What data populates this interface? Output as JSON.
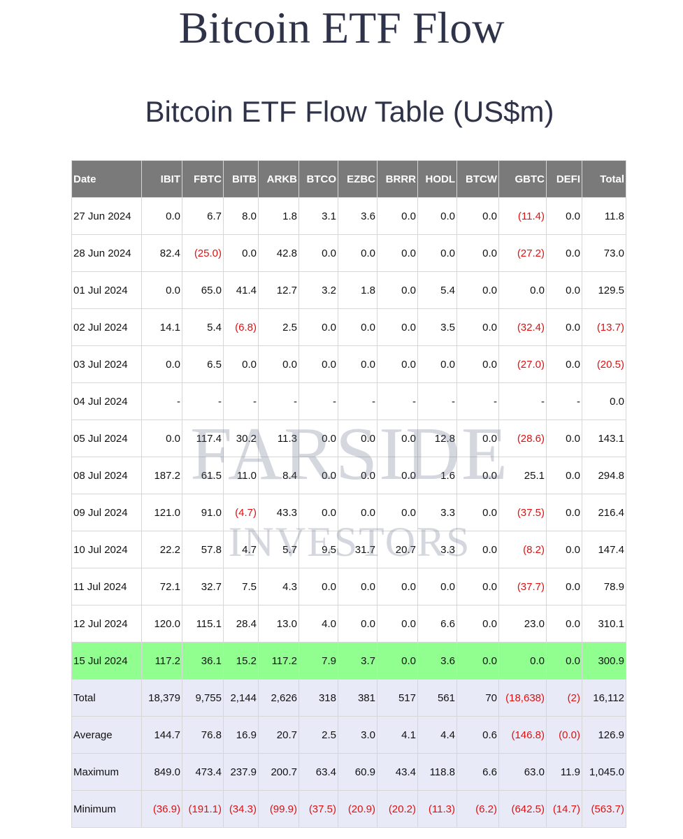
{
  "page": {
    "site_title": "Bitcoin ETF Flow",
    "table_title": "Bitcoin ETF Flow Table (US$m)"
  },
  "watermark": {
    "line1": "FARSIDE",
    "line2": "INVESTORS"
  },
  "table": {
    "headers": [
      "Date",
      "IBIT",
      "FBTC",
      "BITB",
      "ARKB",
      "BTCO",
      "EZBC",
      "BRRR",
      "HODL",
      "BTCW",
      "GBTC",
      "DEFI",
      "Total"
    ],
    "rows": [
      [
        "27 Jun 2024",
        "0.0",
        "6.7",
        "8.0",
        "1.8",
        "3.1",
        "3.6",
        "0.0",
        "0.0",
        "0.0",
        "(11.4)",
        "0.0",
        "11.8"
      ],
      [
        "28 Jun 2024",
        "82.4",
        "(25.0)",
        "0.0",
        "42.8",
        "0.0",
        "0.0",
        "0.0",
        "0.0",
        "0.0",
        "(27.2)",
        "0.0",
        "73.0"
      ],
      [
        "01 Jul 2024",
        "0.0",
        "65.0",
        "41.4",
        "12.7",
        "3.2",
        "1.8",
        "0.0",
        "5.4",
        "0.0",
        "0.0",
        "0.0",
        "129.5"
      ],
      [
        "02 Jul 2024",
        "14.1",
        "5.4",
        "(6.8)",
        "2.5",
        "0.0",
        "0.0",
        "0.0",
        "3.5",
        "0.0",
        "(32.4)",
        "0.0",
        "(13.7)"
      ],
      [
        "03 Jul 2024",
        "0.0",
        "6.5",
        "0.0",
        "0.0",
        "0.0",
        "0.0",
        "0.0",
        "0.0",
        "0.0",
        "(27.0)",
        "0.0",
        "(20.5)"
      ],
      [
        "04 Jul 2024",
        "-",
        "-",
        "-",
        "-",
        "-",
        "-",
        "-",
        "-",
        "-",
        "-",
        "-",
        "0.0"
      ],
      [
        "05 Jul 2024",
        "0.0",
        "117.4",
        "30.2",
        "11.3",
        "0.0",
        "0.0",
        "0.0",
        "12.8",
        "0.0",
        "(28.6)",
        "0.0",
        "143.1"
      ],
      [
        "08 Jul 2024",
        "187.2",
        "61.5",
        "11.0",
        "8.4",
        "0.0",
        "0.0",
        "0.0",
        "1.6",
        "0.0",
        "25.1",
        "0.0",
        "294.8"
      ],
      [
        "09 Jul 2024",
        "121.0",
        "91.0",
        "(4.7)",
        "43.3",
        "0.0",
        "0.0",
        "0.0",
        "3.3",
        "0.0",
        "(37.5)",
        "0.0",
        "216.4"
      ],
      [
        "10 Jul 2024",
        "22.2",
        "57.8",
        "4.7",
        "5.7",
        "9.5",
        "31.7",
        "20.7",
        "3.3",
        "0.0",
        "(8.2)",
        "0.0",
        "147.4"
      ],
      [
        "11 Jul 2024",
        "72.1",
        "32.7",
        "7.5",
        "4.3",
        "0.0",
        "0.0",
        "0.0",
        "0.0",
        "0.0",
        "(37.7)",
        "0.0",
        "78.9"
      ],
      [
        "12 Jul 2024",
        "120.0",
        "115.1",
        "28.4",
        "13.0",
        "4.0",
        "0.0",
        "0.0",
        "6.6",
        "0.0",
        "23.0",
        "0.0",
        "310.1"
      ],
      [
        "15 Jul 2024",
        "117.2",
        "36.1",
        "15.2",
        "117.2",
        "7.9",
        "3.7",
        "0.0",
        "3.6",
        "0.0",
        "0.0",
        "0.0",
        "300.9"
      ],
      [
        "Total",
        "18,379",
        "9,755",
        "2,144",
        "2,626",
        "318",
        "381",
        "517",
        "561",
        "70",
        "(18,638)",
        "(2)",
        "16,112"
      ],
      [
        "Average",
        "144.7",
        "76.8",
        "16.9",
        "20.7",
        "2.5",
        "3.0",
        "4.1",
        "4.4",
        "0.6",
        "(146.8)",
        "(0.0)",
        "126.9"
      ],
      [
        "Maximum",
        "849.0",
        "473.4",
        "237.9",
        "200.7",
        "63.4",
        "60.9",
        "43.4",
        "118.8",
        "6.6",
        "63.0",
        "11.9",
        "1,045.0"
      ],
      [
        "Minimum",
        "(36.9)",
        "(191.1)",
        "(34.3)",
        "(99.9)",
        "(37.5)",
        "(20.9)",
        "(20.2)",
        "(11.3)",
        "(6.2)",
        "(642.5)",
        "(14.7)",
        "(563.7)"
      ]
    ],
    "highlight_row_index": 12,
    "summary_row_start_index": 13
  },
  "colors": {
    "title": "#2f3349",
    "header_bg": "#7a7a7a",
    "negative": "#e01010",
    "highlight_row": "#90ff90",
    "summary_rows": "#e8ebf7"
  }
}
